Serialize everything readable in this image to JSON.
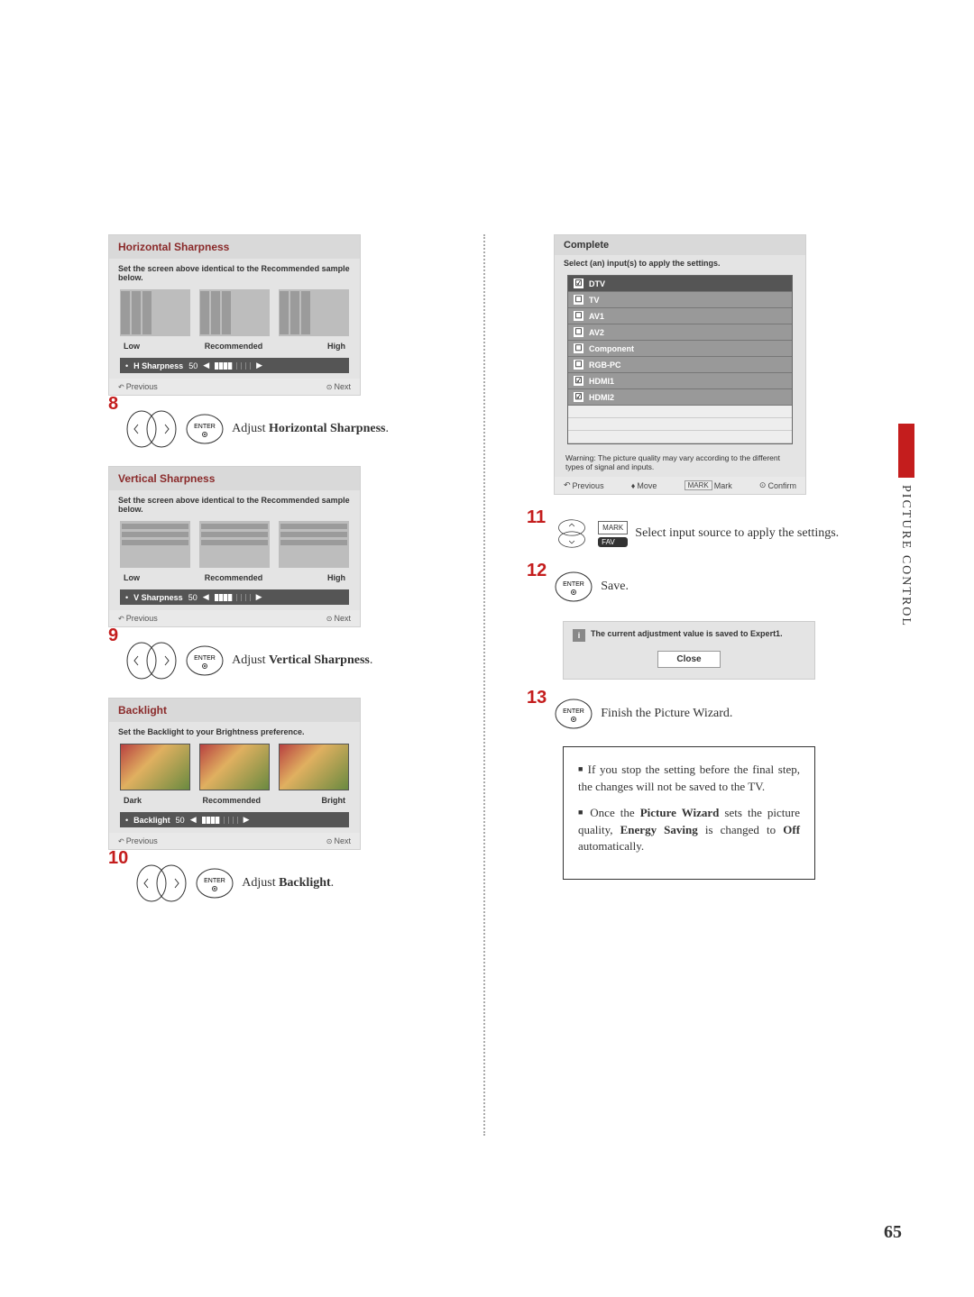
{
  "page_number": "65",
  "side_label": "PICTURE CONTROL",
  "accent_color": "#c41d1d",
  "panels": {
    "hsharp": {
      "title": "Horizontal Sharpness",
      "instruction": "Set the screen above identical to the Recommended sample below.",
      "labels": {
        "low": "Low",
        "mid": "Recommended",
        "high": "High"
      },
      "slider_label": "H Sharpness",
      "slider_value": "50",
      "nav_prev": "Previous",
      "nav_next": "Next"
    },
    "vsharp": {
      "title": "Vertical Sharpness",
      "instruction": "Set the screen above identical to the Recommended sample below.",
      "labels": {
        "low": "Low",
        "mid": "Recommended",
        "high": "High"
      },
      "slider_label": "V Sharpness",
      "slider_value": "50",
      "nav_prev": "Previous",
      "nav_next": "Next"
    },
    "backlight": {
      "title": "Backlight",
      "instruction": "Set the Backlight to your Brightness preference.",
      "labels": {
        "low": "Dark",
        "mid": "Recommended",
        "high": "Bright"
      },
      "slider_label": "Backlight",
      "slider_value": "50",
      "nav_prev": "Previous",
      "nav_next": "Next"
    },
    "complete": {
      "title": "Complete",
      "subtitle": "Select (an) input(s) to apply the settings.",
      "inputs": [
        {
          "label": "DTV",
          "checked": true,
          "selected": true
        },
        {
          "label": "TV",
          "checked": false
        },
        {
          "label": "AV1",
          "checked": false
        },
        {
          "label": "AV2",
          "checked": false
        },
        {
          "label": "Component",
          "checked": false
        },
        {
          "label": "RGB-PC",
          "checked": false
        },
        {
          "label": "HDMI1",
          "checked": true
        },
        {
          "label": "HDMI2",
          "checked": true
        }
      ],
      "warning": "Warning: The picture quality may vary according to the different types of signal and inputs.",
      "nav_prev": "Previous",
      "nav_move": "Move",
      "nav_mark": "Mark",
      "nav_confirm": "Confirm",
      "mark_btn": "MARK"
    }
  },
  "steps": {
    "s8": {
      "num": "8",
      "enter": "ENTER",
      "text_pre": "Adjust ",
      "text_b": "Horizontal Sharpness",
      "text_post": "."
    },
    "s9": {
      "num": "9",
      "enter": "ENTER",
      "text_pre": "Adjust ",
      "text_b": "Vertical Sharpness",
      "text_post": "."
    },
    "s10": {
      "num": "10",
      "enter": "ENTER",
      "text_pre": "Adjust ",
      "text_b": "Backlight",
      "text_post": "."
    },
    "s11": {
      "num": "11",
      "mark": "MARK",
      "fav": "FAV",
      "text": "Select input source to apply the settings."
    },
    "s12": {
      "num": "12",
      "enter": "ENTER",
      "text": "Save."
    },
    "s13": {
      "num": "13",
      "enter": "ENTER",
      "text": "Finish the Picture Wizard."
    }
  },
  "savebox": {
    "message": "The current adjustment value is saved to Expert1.",
    "close": "Close"
  },
  "notes": {
    "n1_a": "If you stop the setting before the final step, the changes will not be saved to the TV.",
    "n2_a": "Once the ",
    "n2_b": "Picture Wizard",
    "n2_c": " sets the picture quality, ",
    "n2_d": "Energy Saving",
    "n2_e": " is changed to ",
    "n2_f": "Off",
    "n2_g": " automatically."
  }
}
